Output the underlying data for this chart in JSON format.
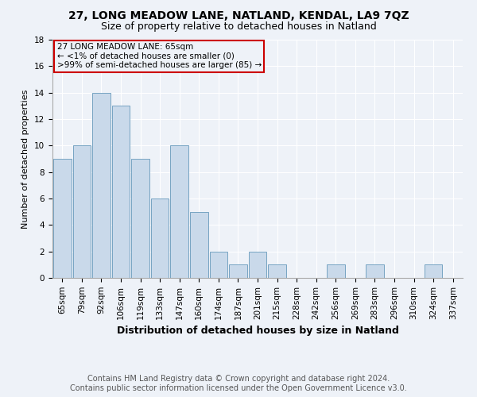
{
  "title1": "27, LONG MEADOW LANE, NATLAND, KENDAL, LA9 7QZ",
  "title2": "Size of property relative to detached houses in Natland",
  "xlabel": "Distribution of detached houses by size in Natland",
  "ylabel": "Number of detached properties",
  "footer1": "Contains HM Land Registry data © Crown copyright and database right 2024.",
  "footer2": "Contains public sector information licensed under the Open Government Licence v3.0.",
  "annotation_line1": "27 LONG MEADOW LANE: 65sqm",
  "annotation_line2": "← <1% of detached houses are smaller (0)",
  "annotation_line3": ">99% of semi-detached houses are larger (85) →",
  "categories": [
    "65sqm",
    "79sqm",
    "92sqm",
    "106sqm",
    "119sqm",
    "133sqm",
    "147sqm",
    "160sqm",
    "174sqm",
    "187sqm",
    "201sqm",
    "215sqm",
    "228sqm",
    "242sqm",
    "256sqm",
    "269sqm",
    "283sqm",
    "296sqm",
    "310sqm",
    "324sqm",
    "337sqm"
  ],
  "values": [
    9,
    10,
    14,
    13,
    9,
    6,
    10,
    5,
    2,
    1,
    2,
    1,
    0,
    0,
    1,
    0,
    1,
    0,
    0,
    1,
    0
  ],
  "bar_color": "#c9d9ea",
  "bar_edge_color": "#6699bb",
  "annotation_box_color": "#cc0000",
  "ylim": [
    0,
    18
  ],
  "yticks": [
    0,
    2,
    4,
    6,
    8,
    10,
    12,
    14,
    16,
    18
  ],
  "bg_color": "#eef2f8",
  "grid_color": "#ffffff",
  "title1_fontsize": 10,
  "title2_fontsize": 9,
  "xlabel_fontsize": 9,
  "ylabel_fontsize": 8,
  "tick_fontsize": 7.5,
  "footer_fontsize": 7,
  "annotation_fontsize": 7.5
}
